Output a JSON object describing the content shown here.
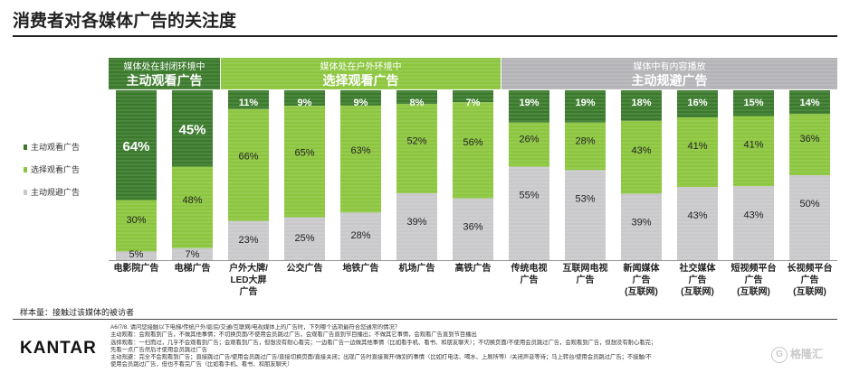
{
  "page": {
    "title": "消费者对各媒体广告的关注度",
    "sample_note": "样本量：接触过该媒体的被访者",
    "logo": "KANTAR",
    "watermark": "格隆汇"
  },
  "notes": [
    "A6/7/8. 请问您接触以下电梯/传统户外/影院/交通/互联网/电视媒体上的广告时，下列哪个选项最符合您通常的情况？",
    "主动观看：会观看到广告，不做其他事情；不切换页面/不使用会员跳过广告，会观看广告直到节目播出；不做其它事情，会观看广告直到节目播出",
    "选择观看：一扫而过，几乎不会观看到广告；会观看到广告，但想没有耐心看完；一边看广告一边做其他事情（比如看手机、看书、和朋友聊天）；不切换页面/不使用会员跳过广告，会观看到广告，但想没有耐心看完；",
    "先看一点广告然后才使用会员跳过广告",
    "主动规避：完全不会观看到广告；直接跳过广告/使用会员跳过广告/直接切换页面/直接关闭；出现广告时直接离开/做别的事情（比如打电话、喝水、上厕所等）/关闭声音等待；马上转台/使用会员跳过广告；不接触/不",
    "使用会员跳过广告，但也不看完广告（比如看手机、看书、和朋友聊天）"
  ],
  "colors": {
    "active": "#3b7a2c",
    "selective": "#8cc63f",
    "avoid": "#c9c9cc",
    "header_group1": "#3b7a2c",
    "header_group2": "#8cc63f",
    "header_group3": "#b4b4b8"
  },
  "chart_data": {
    "type": "bar",
    "stacked": true,
    "orientation": "vertical",
    "normalized_to_100": true,
    "categories": [
      "电影院广告",
      "电梯广告",
      "户外大牌/LED大屏广告",
      "公交广告",
      "地铁广告",
      "机场广告",
      "高铁广告",
      "传统电视广告",
      "互联网电视广告",
      "新闻媒体广告(互联网)",
      "社交媒体广告(互联网)",
      "短视频平台广告(互联网)",
      "长视频平台广告(互联网)"
    ],
    "category_lines": [
      [
        "电影院广告"
      ],
      [
        "电梯广告"
      ],
      [
        "户外大牌/",
        "LED大屏",
        "广告"
      ],
      [
        "公交广告"
      ],
      [
        "地铁广告"
      ],
      [
        "机场广告"
      ],
      [
        "高铁广告"
      ],
      [
        "传统电视",
        "广告"
      ],
      [
        "互联网电视",
        "广告"
      ],
      [
        "新闻媒体",
        "广告",
        "(互联网)"
      ],
      [
        "社交媒体",
        "广告",
        "(互联网)"
      ],
      [
        "短视频平台",
        "广告",
        "(互联网)"
      ],
      [
        "长视频平台",
        "广告",
        "(互联网)"
      ]
    ],
    "series": [
      {
        "name": "主动观看广告",
        "values": [
          64,
          45,
          11,
          9,
          9,
          8,
          7,
          19,
          19,
          18,
          16,
          15,
          14
        ]
      },
      {
        "name": "选择观看广告",
        "values": [
          30,
          48,
          66,
          65,
          63,
          52,
          56,
          26,
          28,
          43,
          41,
          41,
          36
        ]
      },
      {
        "name": "主动规避广告",
        "values": [
          5,
          7,
          23,
          25,
          28,
          39,
          36,
          55,
          53,
          39,
          43,
          43,
          50
        ]
      }
    ],
    "value_labels": [
      [
        "64%",
        "30%",
        "5%"
      ],
      [
        "45%",
        "48%",
        "7%"
      ],
      [
        "11%",
        "66%",
        "23%"
      ],
      [
        "9%",
        "65%",
        "25%"
      ],
      [
        "9%",
        "63%",
        "28%"
      ],
      [
        "8%",
        "52%",
        "39%"
      ],
      [
        "7%",
        "56%",
        "36%"
      ],
      [
        "19%",
        "26%",
        "55%"
      ],
      [
        "19%",
        "28%",
        "53%"
      ],
      [
        "18%",
        "43%",
        "39%"
      ],
      [
        "16%",
        "41%",
        "43%"
      ],
      [
        "15%",
        "41%",
        "43%"
      ],
      [
        "14%",
        "36%",
        "50%"
      ]
    ],
    "groups": [
      {
        "line1": "媒体处在封闭环境中",
        "line2": "主动观看广告",
        "first": 0,
        "last": 1
      },
      {
        "line1": "媒体处在户外环境中",
        "line2": "选择观看广告",
        "first": 2,
        "last": 6
      },
      {
        "line1": "媒体中有内容播放",
        "line2": "主动规避广告",
        "first": 7,
        "last": 12
      }
    ],
    "legend": [
      "主动观看广告",
      "选择观看广告",
      "主动规避广告"
    ],
    "legend_position": "left",
    "grid": false
  }
}
